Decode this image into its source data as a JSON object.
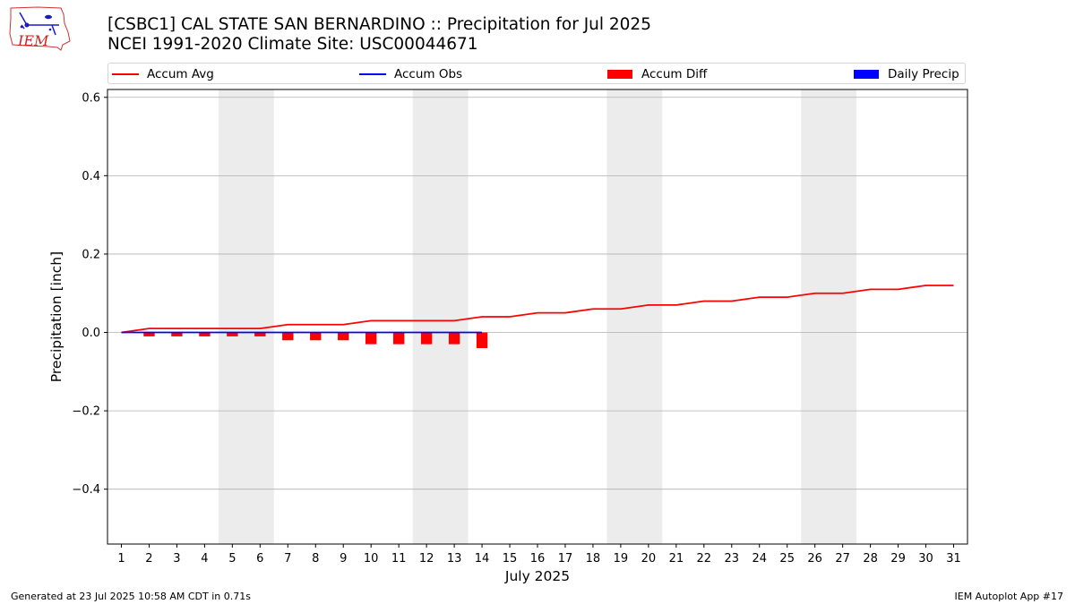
{
  "header": {
    "title_line1": "[CSBC1] CAL STATE SAN BERNARDINO :: Precipitation for Jul 2025",
    "title_line2": "NCEI 1991-2020 Climate Site: USC00044671",
    "logo_text": "IEM"
  },
  "footer": {
    "generated": "Generated at 23 Jul 2025 10:58 AM CDT in 0.71s",
    "app": "IEM Autoplot App #17"
  },
  "colors": {
    "accum_avg": "#ff0000",
    "accum_obs": "#0000ff",
    "accum_diff": "#ff0000",
    "daily_precip": "#0000ff",
    "weekend_band": "#ececec",
    "grid": "#b0b0b0"
  },
  "chart_data": {
    "type": "line",
    "xlabel": "July 2025",
    "ylabel": "Precipitation [inch]",
    "ylim": [
      -0.54,
      0.62
    ],
    "xlim": [
      0.5,
      31.5
    ],
    "yticks": [
      -0.4,
      -0.2,
      0.0,
      0.2,
      0.4,
      0.6
    ],
    "ytick_labels": [
      "−0.4",
      "−0.2",
      "0.0",
      "0.2",
      "0.4",
      "0.6"
    ],
    "x": [
      1,
      2,
      3,
      4,
      5,
      6,
      7,
      8,
      9,
      10,
      11,
      12,
      13,
      14,
      15,
      16,
      17,
      18,
      19,
      20,
      21,
      22,
      23,
      24,
      25,
      26,
      27,
      28,
      29,
      30,
      31
    ],
    "x_tick_labels": [
      "1",
      "2",
      "3",
      "4",
      "5",
      "6",
      "7",
      "8",
      "9",
      "10",
      "11",
      "12",
      "13",
      "14",
      "15",
      "16",
      "17",
      "18",
      "19",
      "20",
      "21",
      "22",
      "23",
      "24",
      "25",
      "26",
      "27",
      "28",
      "29",
      "30",
      "31"
    ],
    "weekend_spans": [
      [
        5,
        6
      ],
      [
        12,
        13
      ],
      [
        19,
        20
      ],
      [
        26,
        27
      ]
    ],
    "grid": "y",
    "legend_position": "top",
    "legend": [
      "Accum Avg",
      "Accum Obs",
      "Accum Diff",
      "Daily Precip"
    ],
    "series": [
      {
        "name": "Accum Avg",
        "kind": "line",
        "x": [
          1,
          2,
          3,
          4,
          5,
          6,
          7,
          8,
          9,
          10,
          11,
          12,
          13,
          14,
          15,
          16,
          17,
          18,
          19,
          20,
          21,
          22,
          23,
          24,
          25,
          26,
          27,
          28,
          29,
          30,
          31
        ],
        "values": [
          0.0,
          0.01,
          0.01,
          0.01,
          0.01,
          0.01,
          0.02,
          0.02,
          0.02,
          0.03,
          0.03,
          0.03,
          0.03,
          0.04,
          0.04,
          0.05,
          0.05,
          0.06,
          0.06,
          0.07,
          0.07,
          0.08,
          0.08,
          0.09,
          0.09,
          0.1,
          0.1,
          0.11,
          0.11,
          0.12,
          0.12
        ]
      },
      {
        "name": "Accum Obs",
        "kind": "line",
        "x": [
          1,
          2,
          3,
          4,
          5,
          6,
          7,
          8,
          9,
          10,
          11,
          12,
          13,
          14
        ],
        "values": [
          0,
          0,
          0,
          0,
          0,
          0,
          0,
          0,
          0,
          0,
          0,
          0,
          0,
          0
        ]
      },
      {
        "name": "Accum Diff",
        "kind": "bar",
        "x": [
          1,
          2,
          3,
          4,
          5,
          6,
          7,
          8,
          9,
          10,
          11,
          12,
          13,
          14
        ],
        "values": [
          0.0,
          -0.01,
          -0.01,
          -0.01,
          -0.01,
          -0.01,
          -0.02,
          -0.02,
          -0.02,
          -0.03,
          -0.03,
          -0.03,
          -0.03,
          -0.04
        ]
      },
      {
        "name": "Daily Precip",
        "kind": "bar",
        "x": [
          1,
          2,
          3,
          4,
          5,
          6,
          7,
          8,
          9,
          10,
          11,
          12,
          13,
          14
        ],
        "values": [
          0,
          0,
          0,
          0,
          0,
          0,
          0,
          0,
          0,
          0,
          0,
          0,
          0,
          0
        ]
      }
    ]
  }
}
